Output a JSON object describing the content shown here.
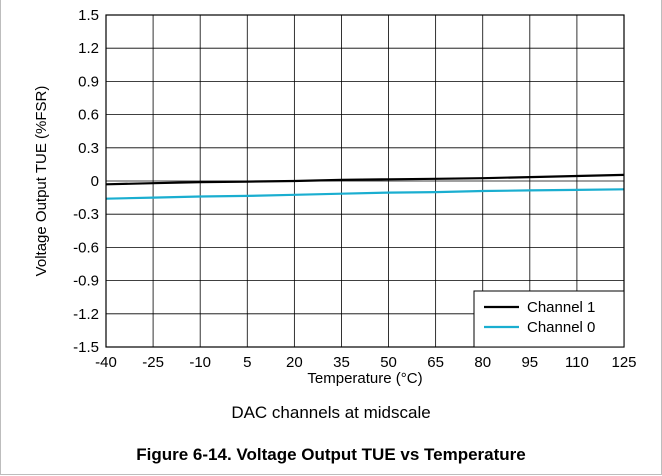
{
  "figure": {
    "subtitle": "DAC channels at midscale",
    "caption": "Figure 6-14. Voltage Output TUE vs Temperature"
  },
  "chart_data": {
    "type": "line",
    "xlabel": "Temperature (°C)",
    "ylabel": "Voltage Output TUE (%FSR)",
    "xlim": [
      -40,
      125
    ],
    "ylim": [
      -1.5,
      1.5
    ],
    "xticks": [
      -40,
      -25,
      -10,
      5,
      20,
      35,
      50,
      65,
      80,
      95,
      110,
      125
    ],
    "yticks": [
      1.5,
      1.2,
      0.9,
      0.6,
      0.3,
      0,
      -0.3,
      -0.6,
      -0.9,
      -1.2,
      -1.5
    ],
    "grid": true,
    "legend_position": "bottom-right",
    "series": [
      {
        "name": "Channel 1",
        "color": "#000000",
        "x": [
          -40,
          -25,
          -10,
          5,
          20,
          35,
          50,
          65,
          80,
          95,
          110,
          125
        ],
        "y": [
          -0.03,
          -0.02,
          -0.01,
          -0.005,
          0.0,
          0.01,
          0.015,
          0.02,
          0.025,
          0.035,
          0.045,
          0.055
        ]
      },
      {
        "name": "Channel 0",
        "color": "#1aaed0",
        "x": [
          -40,
          -25,
          -10,
          5,
          20,
          35,
          50,
          65,
          80,
          95,
          110,
          125
        ],
        "y": [
          -0.16,
          -0.15,
          -0.14,
          -0.135,
          -0.125,
          -0.115,
          -0.105,
          -0.1,
          -0.09,
          -0.085,
          -0.08,
          -0.075
        ]
      }
    ]
  }
}
